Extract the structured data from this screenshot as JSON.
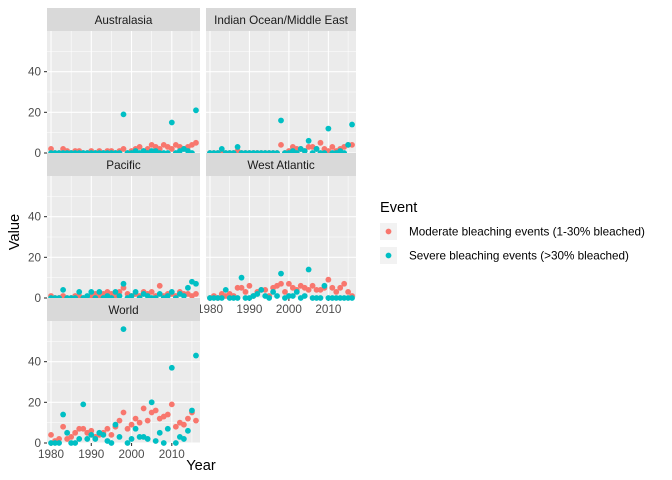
{
  "chart_data": {
    "type": "scatter",
    "facet_by": "region",
    "xlabel": "Year",
    "ylabel": "Value",
    "xlim": [
      1979,
      2017
    ],
    "ylim": [
      0,
      60
    ],
    "x_ticks": [
      1980,
      1990,
      2000,
      2010
    ],
    "y_ticks": [
      0,
      20,
      40
    ],
    "legend": {
      "title": "Event",
      "position": "right",
      "entries": [
        {
          "key": "moderate",
          "label": "Moderate bleaching events (1-30% bleached)",
          "color": "#F8766D"
        },
        {
          "key": "severe",
          "label": "Severe bleaching events (>30% bleached)",
          "color": "#00BFC4"
        }
      ]
    },
    "years": [
      1980,
      1981,
      1982,
      1983,
      1984,
      1985,
      1986,
      1987,
      1988,
      1989,
      1990,
      1991,
      1992,
      1993,
      1994,
      1995,
      1996,
      1997,
      1998,
      1999,
      2000,
      2001,
      2002,
      2003,
      2004,
      2005,
      2006,
      2007,
      2008,
      2009,
      2010,
      2011,
      2012,
      2013,
      2014,
      2015,
      2016
    ],
    "facets": [
      {
        "name": "Australasia",
        "series": [
          {
            "key": "moderate",
            "values": [
              2,
              0,
              0,
              2,
              1,
              0,
              1,
              1,
              0,
              0,
              1,
              0,
              1,
              0,
              1,
              1,
              0,
              1,
              2,
              0,
              1,
              2,
              3,
              1,
              2,
              4,
              3,
              2,
              4,
              3,
              2,
              4,
              3,
              2,
              3,
              4,
              5
            ]
          },
          {
            "key": "severe",
            "values": [
              0,
              0,
              0,
              0,
              0,
              0,
              0,
              0,
              0,
              0,
              0,
              0,
              0,
              0,
              0,
              0,
              0,
              0,
              19,
              0,
              0,
              1,
              0,
              1,
              0,
              1,
              1,
              0,
              0,
              0,
              15,
              0,
              1,
              2,
              1,
              0,
              21
            ]
          }
        ]
      },
      {
        "name": "Indian Ocean/Middle East",
        "series": [
          {
            "key": "moderate",
            "values": [
              0,
              0,
              0,
              0,
              0,
              0,
              0,
              1,
              0,
              0,
              0,
              0,
              0,
              0,
              0,
              0,
              0,
              0,
              4,
              0,
              1,
              3,
              2,
              2,
              1,
              3,
              3,
              2,
              5,
              2,
              1,
              3,
              1,
              2,
              3,
              4,
              4
            ]
          },
          {
            "key": "severe",
            "values": [
              0,
              0,
              0,
              2,
              0,
              0,
              0,
              3,
              0,
              0,
              0,
              0,
              0,
              0,
              0,
              0,
              0,
              0,
              16,
              0,
              0,
              1,
              0,
              2,
              1,
              6,
              0,
              2,
              0,
              0,
              12,
              0,
              0,
              1,
              0,
              4,
              14
            ]
          }
        ]
      },
      {
        "name": "Pacific",
        "series": [
          {
            "key": "moderate",
            "values": [
              1,
              0,
              0,
              1,
              0,
              0,
              1,
              1,
              0,
              0,
              1,
              2,
              1,
              2,
              3,
              2,
              1,
              3,
              5,
              2,
              1,
              2,
              1,
              3,
              2,
              3,
              1,
              6,
              1,
              2,
              2,
              1,
              3,
              2,
              2,
              1,
              2
            ]
          },
          {
            "key": "severe",
            "values": [
              0,
              0,
              0,
              4,
              0,
              0,
              0,
              3,
              0,
              1,
              3,
              0,
              3,
              0,
              1,
              0,
              3,
              1,
              7,
              0,
              1,
              3,
              0,
              2,
              1,
              0,
              0,
              2,
              0,
              1,
              3,
              0,
              2,
              1,
              5,
              8,
              7
            ]
          }
        ]
      },
      {
        "name": "West Atlantic",
        "series": [
          {
            "key": "moderate",
            "values": [
              0,
              1,
              0,
              2,
              1,
              2,
              1,
              5,
              5,
              3,
              6,
              1,
              3,
              4,
              4,
              1,
              5,
              6,
              7,
              3,
              7,
              5,
              4,
              6,
              5,
              4,
              6,
              4,
              4,
              5,
              9,
              5,
              3,
              5,
              7,
              3,
              1
            ]
          },
          {
            "key": "severe",
            "values": [
              0,
              0,
              0,
              0,
              4,
              0,
              0,
              0,
              10,
              0,
              0,
              1,
              2,
              4,
              1,
              0,
              3,
              1,
              12,
              0,
              1,
              1,
              3,
              0,
              1,
              14,
              0,
              0,
              0,
              6,
              0,
              0,
              0,
              0,
              0,
              0,
              0
            ]
          }
        ]
      },
      {
        "name": "World",
        "series": [
          {
            "key": "moderate",
            "values": [
              4,
              1,
              2,
              8,
              2,
              3,
              5,
              7,
              7,
              5,
              6,
              3,
              4,
              5,
              7,
              4,
              8,
              11,
              15,
              7,
              9,
              12,
              10,
              17,
              11,
              15,
              16,
              12,
              13,
              14,
              19,
              8,
              10,
              9,
              12,
              15,
              11
            ]
          },
          {
            "key": "severe",
            "values": [
              0,
              0,
              0,
              14,
              5,
              0,
              0,
              2,
              19,
              2,
              4,
              2,
              5,
              4,
              1,
              0,
              9,
              3,
              56,
              0,
              2,
              7,
              3,
              3,
              2,
              20,
              1,
              5,
              0,
              7,
              37,
              0,
              3,
              2,
              6,
              16,
              43
            ]
          }
        ]
      }
    ]
  }
}
